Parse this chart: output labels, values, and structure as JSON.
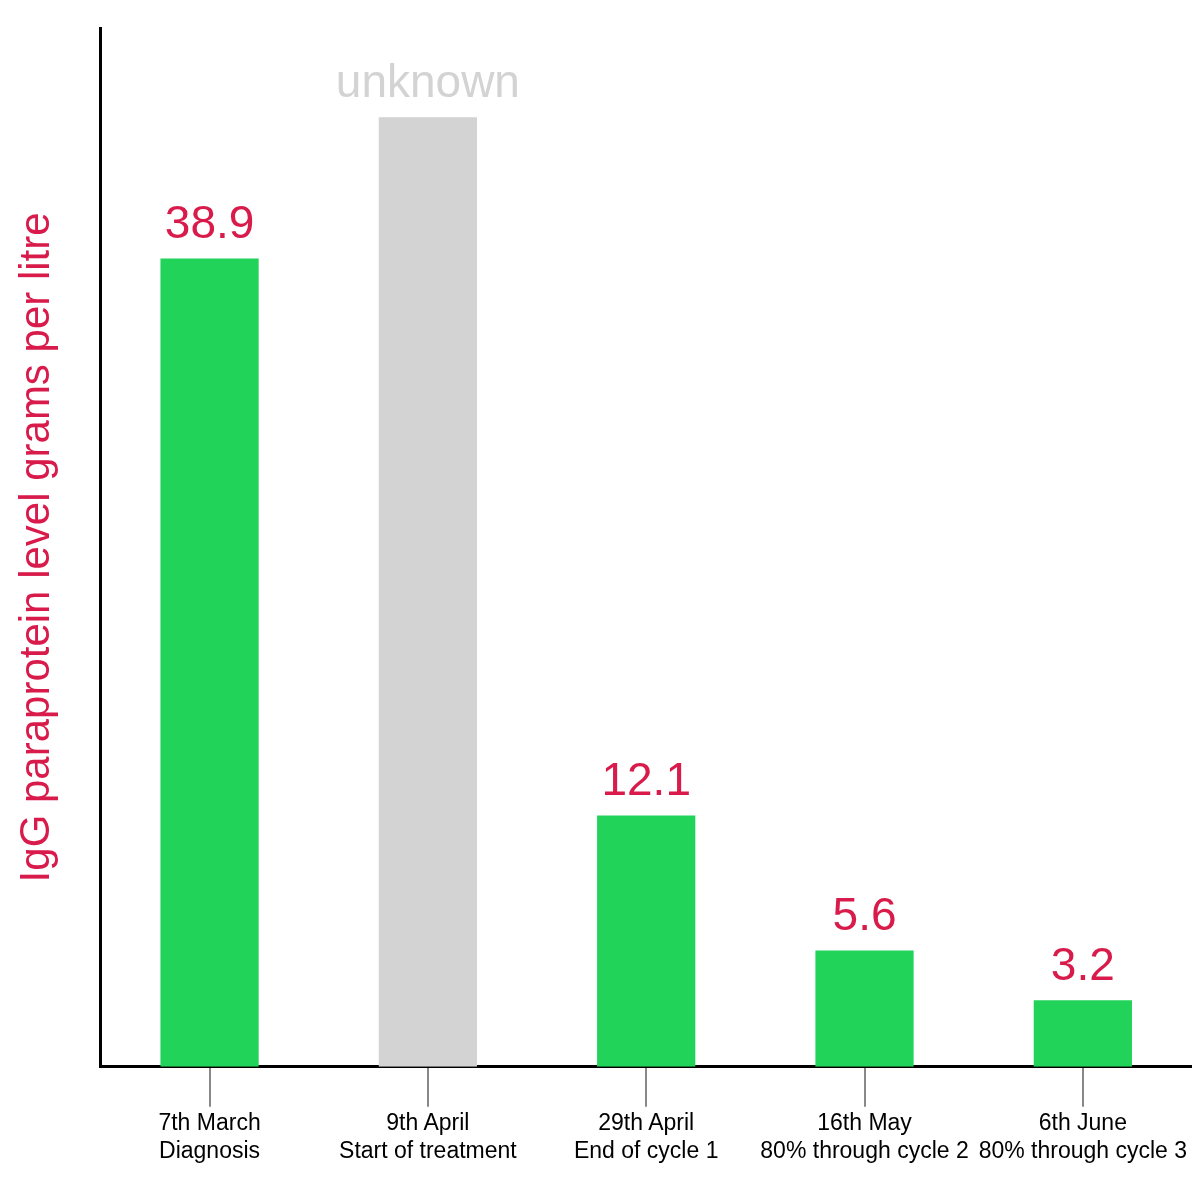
{
  "chart_data": {
    "type": "bar",
    "ylabel": "IgG paraprotein level grams per litre",
    "categories": [
      [
        "7th March",
        "Diagnosis"
      ],
      [
        "9th April",
        "Start of treatment"
      ],
      [
        "29th April",
        "End of cycle 1"
      ],
      [
        "16th May",
        "80% through cycle 2"
      ],
      [
        "6th June",
        "80% through cycle 3"
      ]
    ],
    "series": [
      {
        "color": "#22d35a",
        "colors": [
          "#22d35a",
          "#d3d3d3",
          "#22d35a",
          "#22d35a",
          "#22d35a"
        ],
        "values": [
          38.9,
          45.7,
          12.1,
          5.6,
          3.2
        ],
        "value_labels": [
          "38.9",
          "unknown",
          "12.1",
          "5.6",
          "3.2"
        ]
      }
    ],
    "grid": false,
    "legend": false
  }
}
